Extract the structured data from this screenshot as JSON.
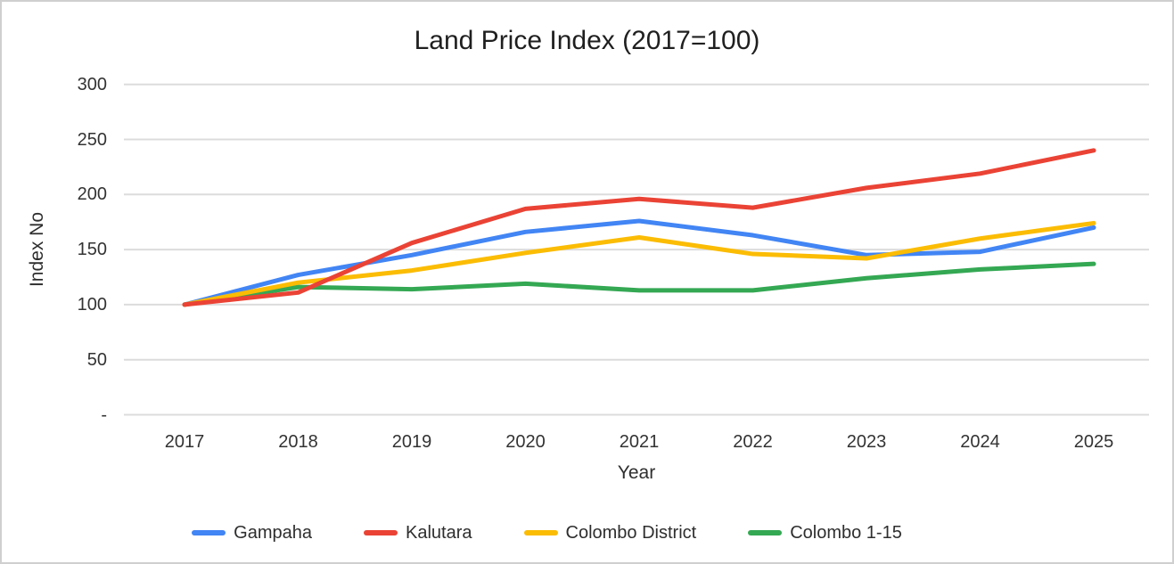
{
  "chart_data": {
    "type": "line",
    "title": "Land Price Index (2017=100)",
    "xlabel": "Year",
    "ylabel": "Index No",
    "categories": [
      "2017",
      "2018",
      "2019",
      "2020",
      "2021",
      "2022",
      "2023",
      "2024",
      "2025"
    ],
    "series": [
      {
        "name": "Gampaha",
        "color": "#4285f4",
        "values": [
          100,
          127,
          145,
          166,
          176,
          163,
          145,
          148,
          170
        ]
      },
      {
        "name": "Kalutara",
        "color": "#ea4335",
        "values": [
          100,
          111,
          156,
          187,
          196,
          188,
          206,
          219,
          240
        ]
      },
      {
        "name": "Colombo District",
        "color": "#fbbc04",
        "values": [
          100,
          120,
          131,
          147,
          161,
          146,
          142,
          160,
          174
        ]
      },
      {
        "name": "Colombo 1-15",
        "color": "#34a853",
        "values": [
          100,
          116,
          114,
          119,
          113,
          113,
          124,
          132,
          137
        ]
      }
    ],
    "ylim": [
      0,
      300
    ],
    "y_ticks": [
      0,
      50,
      100,
      150,
      200,
      250,
      300
    ],
    "y_tick_labels": [
      "-",
      "50",
      "100",
      "150",
      "200",
      "250",
      "300"
    ],
    "grid": true,
    "gridline_color": "#dcdcdc",
    "line_width": 5,
    "legend_position": "bottom",
    "draw_order": [
      0,
      3,
      2,
      1
    ]
  }
}
